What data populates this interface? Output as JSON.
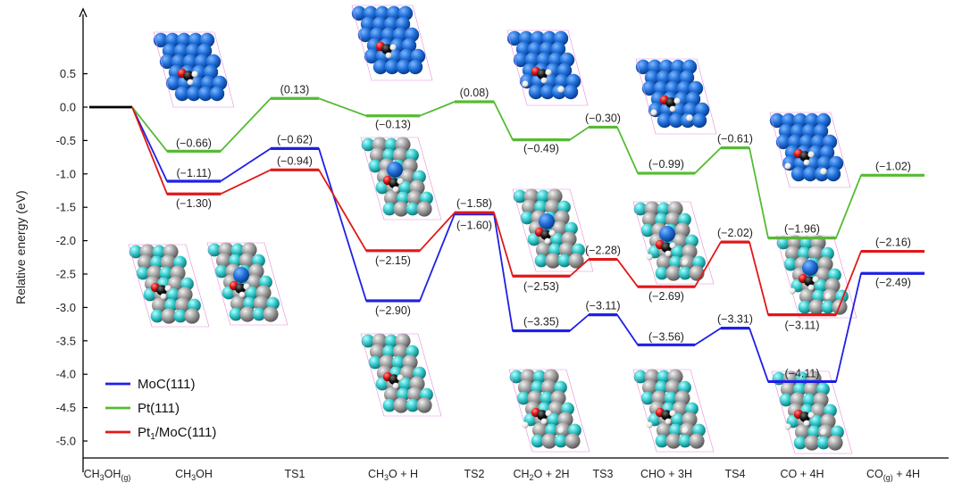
{
  "chart_data": {
    "type": "line",
    "ylabel": "Relative energy (eV)",
    "ylim": [
      -5.2,
      1.4
    ],
    "yticks": [
      "0.5",
      "0.0",
      "-0.5",
      "-1.0",
      "-1.5",
      "-2.0",
      "-2.5",
      "-3.0",
      "-3.5",
      "-4.0",
      "-4.5",
      "-5.0"
    ],
    "ytick_values": [
      0.5,
      0.0,
      -0.5,
      -1.0,
      -1.5,
      -2.0,
      -2.5,
      -3.0,
      -3.5,
      -4.0,
      -4.5,
      -5.0
    ],
    "categories": [
      {
        "main": "CH",
        "sub1": "3",
        "mid": "OH",
        "sub2": "(g)",
        "tail": ""
      },
      {
        "main": "CH",
        "sub1": "3",
        "mid": "OH",
        "sub2": "",
        "tail": ""
      },
      {
        "main": "TS1",
        "sub1": "",
        "mid": "",
        "sub2": "",
        "tail": ""
      },
      {
        "main": "CH",
        "sub1": "3",
        "mid": "O + H",
        "sub2": "",
        "tail": ""
      },
      {
        "main": "TS2",
        "sub1": "",
        "mid": "",
        "sub2": "",
        "tail": ""
      },
      {
        "main": "CH",
        "sub1": "2",
        "mid": "O + 2H",
        "sub2": "",
        "tail": ""
      },
      {
        "main": "TS3",
        "sub1": "",
        "mid": "",
        "sub2": "",
        "tail": ""
      },
      {
        "main": "CHO + 3H",
        "sub1": "",
        "mid": "",
        "sub2": "",
        "tail": ""
      },
      {
        "main": "TS4",
        "sub1": "",
        "mid": "",
        "sub2": "",
        "tail": ""
      },
      {
        "main": "CO + 4H",
        "sub1": "",
        "mid": "",
        "sub2": "",
        "tail": ""
      },
      {
        "main": "CO",
        "sub1": "",
        "mid": "",
        "sub2": "(g)",
        "tail": " + 4H"
      }
    ],
    "start_value": 0.0,
    "series": [
      {
        "name": "MoC(111)",
        "color": "#1f1fe6",
        "values": [
          0.0,
          -1.11,
          -0.62,
          -2.9,
          -1.6,
          -3.35,
          -3.11,
          -3.56,
          -3.31,
          -4.11,
          -2.49
        ],
        "labels": [
          "",
          "(−1.11)",
          "(−0.62)",
          "(−2.90)",
          "(−1.60)",
          "(−3.35)",
          "(−3.11)",
          "(−3.56)",
          "(−3.31)",
          "(−4.11)",
          "(−2.49)"
        ]
      },
      {
        "name": "Pt(111)",
        "color": "#55bb33",
        "values": [
          0.0,
          -0.66,
          0.13,
          -0.13,
          0.08,
          -0.49,
          -0.3,
          -0.99,
          -0.61,
          -1.96,
          -1.02
        ],
        "labels": [
          "",
          "(−0.66)",
          "(0.13)",
          "(−0.13)",
          "(0.08)",
          "(−0.49)",
          "(−0.30)",
          "(−0.99)",
          "(−0.61)",
          "(−1.96)",
          "(−1.02)"
        ]
      },
      {
        "name": "Pt1/MoC(111)",
        "legend_main": "Pt",
        "legend_sub": "1",
        "legend_tail": "/MoC(111)",
        "color": "#e01818",
        "values": [
          0.0,
          -1.3,
          -0.94,
          -2.15,
          -1.58,
          -2.53,
          -2.28,
          -2.69,
          -2.02,
          -3.11,
          -2.16
        ],
        "labels": [
          "",
          "(−1.30)",
          "(−0.94)",
          "(−2.15)",
          "(−1.58)",
          "(−2.53)",
          "(−2.28)",
          "(−2.69)",
          "(−2.02)",
          "(−3.11)",
          "(−2.16)"
        ]
      }
    ],
    "legend_position": "bottom-left",
    "grid": false
  },
  "colors": {
    "axis": "#000000",
    "initial_line": "#000000",
    "mo_atom": "#2277dd",
    "c_atom": "#33cccc",
    "gray_atom": "#999999",
    "o_atom": "#dd1111",
    "h_atom": "#ffffff"
  },
  "icons": [
    "slab-structure-icon"
  ]
}
